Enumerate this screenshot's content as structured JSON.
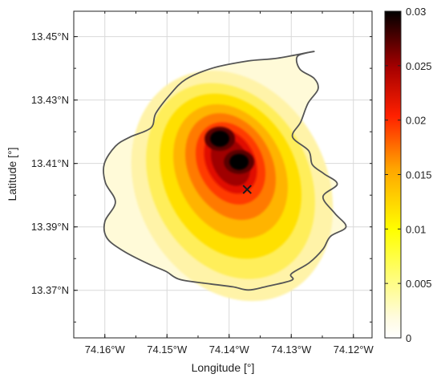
{
  "chart_data": {
    "type": "heatmap",
    "xlabel": "Longitude [°]",
    "ylabel": "Latitude [°]",
    "xlim": [
      74.165,
      74.117
    ],
    "ylim": [
      13.355,
      13.458
    ],
    "x_ticks": [
      {
        "value": 74.16,
        "label": "74.16°W"
      },
      {
        "value": 74.15,
        "label": "74.15°W"
      },
      {
        "value": 74.14,
        "label": "74.14°W"
      },
      {
        "value": 74.13,
        "label": "74.13°W"
      },
      {
        "value": 74.12,
        "label": "74.12°W"
      }
    ],
    "y_ticks": [
      {
        "value": 13.45,
        "label": "13.45°N"
      },
      {
        "value": 13.43,
        "label": "13.43°N"
      },
      {
        "value": 13.41,
        "label": "13.41°N"
      },
      {
        "value": 13.39,
        "label": "13.39°N"
      },
      {
        "value": 13.37,
        "label": "13.37°N"
      }
    ],
    "grid": true,
    "colorbar": {
      "min": 0,
      "max": 0.03,
      "ticks": [
        {
          "value": 0,
          "label": "0"
        },
        {
          "value": 0.005,
          "label": "0.005"
        },
        {
          "value": 0.01,
          "label": "0.01"
        },
        {
          "value": 0.015,
          "label": "0.015"
        },
        {
          "value": 0.02,
          "label": "0.02"
        },
        {
          "value": 0.025,
          "label": "0.025"
        },
        {
          "value": 0.03,
          "label": "0.03"
        }
      ],
      "colors": [
        "#ffffff",
        "#ffff00",
        "#ff2000",
        "#000000"
      ]
    },
    "density_peaks": [
      {
        "lon": 74.1415,
        "lat": 13.4178,
        "density": 0.03
      },
      {
        "lon": 74.1384,
        "lat": 13.4105,
        "density": 0.03
      }
    ],
    "marker": {
      "lon": 74.1371,
      "lat": 13.4018,
      "symbol": "x"
    },
    "boundary": [
      [
        74.1264,
        13.4453
      ],
      [
        74.129,
        13.4438
      ],
      [
        74.1286,
        13.4397
      ],
      [
        74.1263,
        13.4368
      ],
      [
        74.1257,
        13.4334
      ],
      [
        74.1273,
        13.429
      ],
      [
        74.1285,
        13.423
      ],
      [
        74.1298,
        13.4184
      ],
      [
        74.1272,
        13.414
      ],
      [
        74.1266,
        13.4096
      ],
      [
        74.1247,
        13.4067
      ],
      [
        74.1226,
        13.4035
      ],
      [
        74.1249,
        13.3995
      ],
      [
        74.123,
        13.3943
      ],
      [
        74.1212,
        13.39
      ],
      [
        74.1237,
        13.387
      ],
      [
        74.1249,
        13.383
      ],
      [
        74.1271,
        13.3787
      ],
      [
        74.13,
        13.3752
      ],
      [
        74.1299,
        13.3732
      ],
      [
        74.134,
        13.3712
      ],
      [
        74.1369,
        13.3701
      ],
      [
        74.1394,
        13.3711
      ],
      [
        74.143,
        13.372
      ],
      [
        74.1479,
        13.3734
      ],
      [
        74.1502,
        13.376
      ],
      [
        74.1532,
        13.3785
      ],
      [
        74.1572,
        13.3826
      ],
      [
        74.1597,
        13.3866
      ],
      [
        74.16,
        13.3917
      ],
      [
        74.1583,
        13.3978
      ],
      [
        74.1599,
        13.4039
      ],
      [
        74.1601,
        13.4098
      ],
      [
        74.1583,
        13.4154
      ],
      [
        74.156,
        13.4183
      ],
      [
        74.1526,
        13.4212
      ],
      [
        74.1518,
        13.4258
      ],
      [
        74.1496,
        13.4315
      ],
      [
        74.147,
        13.4365
      ],
      [
        74.1426,
        13.4401
      ],
      [
        74.137,
        13.4423
      ],
      [
        74.1322,
        13.4432
      ]
    ]
  }
}
